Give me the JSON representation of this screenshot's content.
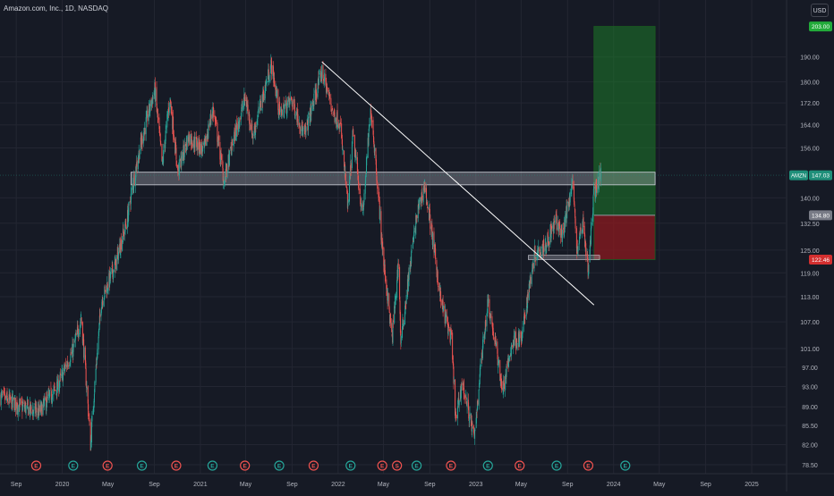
{
  "header": {
    "title": "Amazon.com, Inc., 1D, NASDAQ",
    "currency": "USD"
  },
  "colors": {
    "background": "#161a25",
    "grid": "#232632",
    "up": "#26a69a",
    "down": "#ef5350",
    "profit_zone": "#1e7a2a",
    "loss_zone": "#8b1a1f",
    "take_profit_tag": "#22ab3a",
    "stop_loss_tag": "#d32f2f",
    "entry_tag": "#787b86",
    "price_tag": "#1f8f7a",
    "axis_text": "#b2b5be"
  },
  "chart_data": {
    "type": "candlestick",
    "symbol": "AMZN",
    "price_axis_ticks": [
      "190.00",
      "180.00",
      "172.00",
      "164.00",
      "156.00",
      "140.00",
      "132.50",
      "125.00",
      "119.00",
      "113.00",
      "107.00",
      "101.00",
      "97.00",
      "93.00",
      "89.00",
      "85.50",
      "82.00",
      "78.50"
    ],
    "time_axis_ticks": [
      {
        "label": "Sep",
        "date": "2019-09-01"
      },
      {
        "label": "2020",
        "date": "2020-01-01"
      },
      {
        "label": "May",
        "date": "2020-05-01"
      },
      {
        "label": "Sep",
        "date": "2020-09-01"
      },
      {
        "label": "2021",
        "date": "2021-01-01"
      },
      {
        "label": "May",
        "date": "2021-05-01"
      },
      {
        "label": "Sep",
        "date": "2021-09-01"
      },
      {
        "label": "2022",
        "date": "2022-01-01"
      },
      {
        "label": "May",
        "date": "2022-05-01"
      },
      {
        "label": "Sep",
        "date": "2022-09-01"
      },
      {
        "label": "2023",
        "date": "2023-01-01"
      },
      {
        "label": "May",
        "date": "2023-05-01"
      },
      {
        "label": "Sep",
        "date": "2023-09-01"
      },
      {
        "label": "2024",
        "date": "2024-01-01"
      },
      {
        "label": "May",
        "date": "2024-05-01"
      },
      {
        "label": "Sep",
        "date": "2024-09-01"
      },
      {
        "label": "2025",
        "date": "2025-01-01"
      }
    ],
    "x_range": [
      "2019-07-20",
      "2025-04-01"
    ],
    "y_range": [
      77,
      206
    ],
    "price_path": [
      [
        "2019-07-20",
        91
      ],
      [
        "2019-09-15",
        89
      ],
      [
        "2019-11-01",
        88
      ],
      [
        "2019-12-20",
        93
      ],
      [
        "2020-01-31",
        101
      ],
      [
        "2020-02-20",
        108
      ],
      [
        "2020-03-16",
        82
      ],
      [
        "2020-04-14",
        112
      ],
      [
        "2020-05-20",
        121
      ],
      [
        "2020-06-20",
        133
      ],
      [
        "2020-07-15",
        150
      ],
      [
        "2020-08-01",
        160
      ],
      [
        "2020-09-02",
        177
      ],
      [
        "2020-09-22",
        150
      ],
      [
        "2020-10-12",
        174
      ],
      [
        "2020-11-02",
        148
      ],
      [
        "2020-12-01",
        160
      ],
      [
        "2021-01-10",
        155
      ],
      [
        "2021-02-03",
        170
      ],
      [
        "2021-03-05",
        145
      ],
      [
        "2021-04-01",
        160
      ],
      [
        "2021-04-30",
        174
      ],
      [
        "2021-05-20",
        160
      ],
      [
        "2021-07-08",
        187
      ],
      [
        "2021-07-30",
        168
      ],
      [
        "2021-08-31",
        173
      ],
      [
        "2021-10-04",
        160
      ],
      [
        "2021-11-19",
        184
      ],
      [
        "2021-12-20",
        168
      ],
      [
        "2022-01-05",
        165
      ],
      [
        "2022-01-27",
        137
      ],
      [
        "2022-02-09",
        160
      ],
      [
        "2022-03-07",
        134
      ],
      [
        "2022-03-29",
        170
      ],
      [
        "2022-04-29",
        124
      ],
      [
        "2022-05-24",
        103
      ],
      [
        "2022-06-10",
        122
      ],
      [
        "2022-06-16",
        102
      ],
      [
        "2022-07-29",
        135
      ],
      [
        "2022-08-18",
        144
      ],
      [
        "2022-09-30",
        112
      ],
      [
        "2022-10-28",
        103
      ],
      [
        "2022-11-09",
        86
      ],
      [
        "2022-11-25",
        94
      ],
      [
        "2022-12-28",
        83
      ],
      [
        "2023-01-11",
        95
      ],
      [
        "2023-02-02",
        112
      ],
      [
        "2023-03-13",
        92
      ],
      [
        "2023-04-10",
        103
      ],
      [
        "2023-05-02",
        103
      ],
      [
        "2023-06-05",
        124
      ],
      [
        "2023-07-07",
        127
      ],
      [
        "2023-08-01",
        133
      ],
      [
        "2023-08-18",
        129
      ],
      [
        "2023-09-14",
        145
      ],
      [
        "2023-09-26",
        125
      ],
      [
        "2023-10-12",
        133
      ],
      [
        "2023-10-26",
        119
      ],
      [
        "2023-11-10",
        142
      ],
      [
        "2023-11-28",
        147.03
      ]
    ],
    "events": {
      "earnings": [
        "2019-10-24",
        "2020-01-30",
        "2020-04-30",
        "2020-07-30",
        "2020-10-29",
        "2021-02-02",
        "2021-04-29",
        "2021-07-29",
        "2021-10-28",
        "2022-02-03",
        "2022-04-28",
        "2022-07-28",
        "2022-10-27",
        "2023-02-02",
        "2023-04-27",
        "2023-08-03",
        "2023-10-26",
        "2024-02-01"
      ],
      "earnings_symbol": "E",
      "dividend_symbol": "S",
      "dividend_dates": [
        "2022-06-06"
      ]
    },
    "drawings": {
      "horizontal_zone": {
        "start": "2020-07-01",
        "end": "2024-04-20",
        "low": 144,
        "high": 148
      },
      "trendline": {
        "start": "2021-11-19",
        "y_start": 188,
        "end": "2023-11-10",
        "y_end": 111
      },
      "breakout_zone": {
        "start": "2023-05-20",
        "end": "2023-11-25",
        "low": 122.46,
        "high": 123.6
      }
    },
    "position": {
      "type": "long",
      "start": "2023-11-10",
      "end": "2024-04-20",
      "entry": 134.8,
      "take_profit": 203.0,
      "stop_loss": 122.46
    },
    "current_price": 147.03,
    "price_labels": {
      "ticker": "AMZN",
      "current": "147.03",
      "take_profit": "203.00",
      "entry": "134.80",
      "stop_loss": "122.46"
    }
  }
}
